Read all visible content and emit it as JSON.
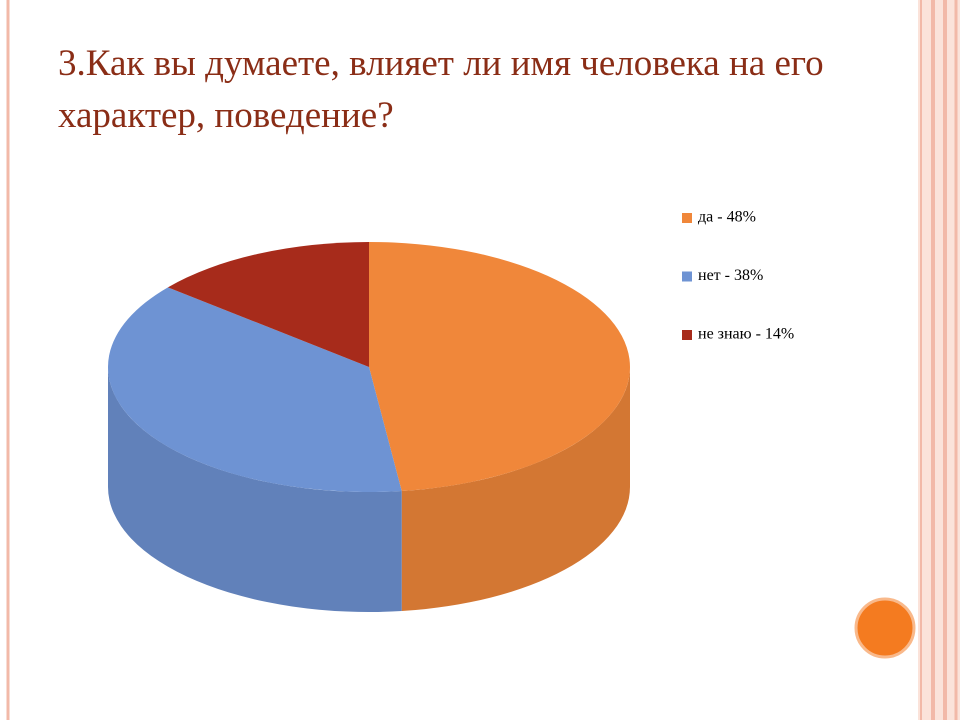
{
  "chart_data": {
    "type": "pie",
    "title": "3.Как вы думаете, влияет ли имя человека на его характер, поведение?",
    "categories": [
      "да - 48%",
      "нет - 38%",
      "не знаю - 14%"
    ],
    "values": [
      48,
      38,
      14
    ],
    "colors": [
      "#f0873a",
      "#6e93d3",
      "#a72b1b"
    ],
    "legend": "right"
  }
}
